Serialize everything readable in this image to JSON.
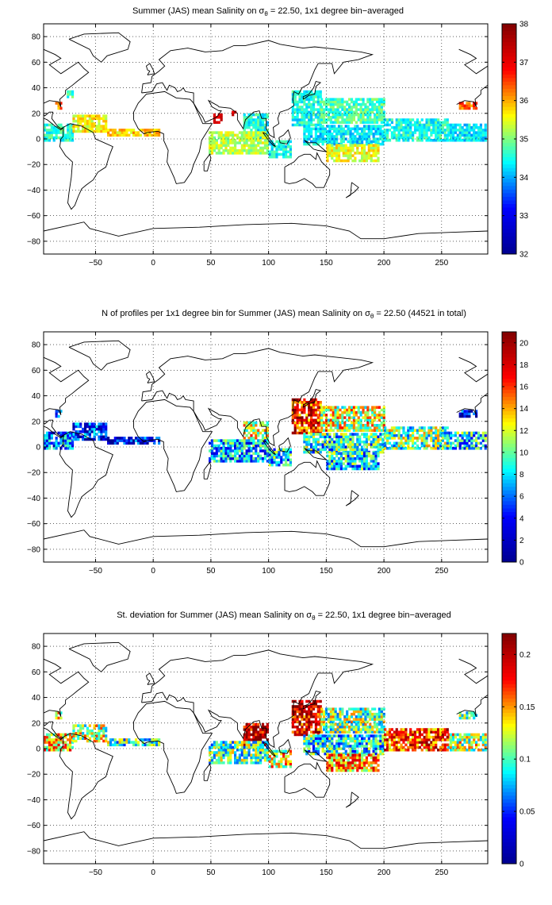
{
  "figure": {
    "background": "#ffffff",
    "colormap": "jet",
    "colormap_stops": [
      "#00008f",
      "#0000ff",
      "#00ffff",
      "#ffff00",
      "#ff0000",
      "#800000"
    ],
    "land_outline_color": "#000000"
  },
  "chart_data": [
    {
      "type": "heatmap",
      "panel": "salinity",
      "title_prefix": "Summer (JAS) mean Salinity on ",
      "title_symbol": "σ",
      "title_subscript": "θ",
      "title_suffix": " = 22.50, 1x1 degree bin−averaged",
      "xlim": [
        -95,
        290
      ],
      "ylim": [
        -90,
        90
      ],
      "xticks": [
        -50,
        0,
        50,
        100,
        150,
        200,
        250
      ],
      "yticks": [
        80,
        60,
        40,
        20,
        0,
        -20,
        -40,
        -60,
        -80
      ],
      "colorbar_range": [
        32,
        38
      ],
      "colorbar_ticks": [
        32,
        33,
        34,
        35,
        36,
        37,
        38
      ],
      "grid": true,
      "regions": [
        {
          "lon": [
            -95,
            -70
          ],
          "lat": [
            -2,
            12
          ],
          "value": 34.6
        },
        {
          "lon": [
            -70,
            -40
          ],
          "lat": [
            5,
            18
          ],
          "value": 35.6
        },
        {
          "lon": [
            -40,
            5
          ],
          "lat": [
            2,
            8
          ],
          "value": 35.8
        },
        {
          "lon": [
            -85,
            -80
          ],
          "lat": [
            23,
            28
          ],
          "value": 36.2
        },
        {
          "lon": [
            -75,
            -70
          ],
          "lat": [
            32,
            38
          ],
          "value": 34.7
        },
        {
          "lon": [
            265,
            280
          ],
          "lat": [
            23,
            28
          ],
          "value": 36.3
        },
        {
          "lon": [
            255,
            288
          ],
          "lat": [
            -2,
            12
          ],
          "value": 34.3
        },
        {
          "lon": [
            52,
            60
          ],
          "lat": [
            12,
            20
          ],
          "value": 37.2
        },
        {
          "lon": [
            68,
            72
          ],
          "lat": [
            18,
            22
          ],
          "value": 37.0
        },
        {
          "lon": [
            78,
            100
          ],
          "lat": [
            0,
            20
          ],
          "value": 34.5
        },
        {
          "lon": [
            48,
            100
          ],
          "lat": [
            -12,
            5
          ],
          "value": 35.3
        },
        {
          "lon": [
            100,
            120
          ],
          "lat": [
            -15,
            -2
          ],
          "value": 34.4
        },
        {
          "lon": [
            120,
            145
          ],
          "lat": [
            10,
            38
          ],
          "value": 34.5
        },
        {
          "lon": [
            145,
            200
          ],
          "lat": [
            12,
            32
          ],
          "value": 34.7
        },
        {
          "lon": [
            130,
            200
          ],
          "lat": [
            -5,
            10
          ],
          "value": 34.3
        },
        {
          "lon": [
            150,
            195
          ],
          "lat": [
            -18,
            -5
          ],
          "value": 35.5
        },
        {
          "lon": [
            200,
            255
          ],
          "lat": [
            -2,
            15
          ],
          "value": 34.5
        }
      ]
    },
    {
      "type": "heatmap",
      "panel": "count",
      "title_prefix": "N of profiles per 1x1 degree bin for Summer (JAS) mean Salinity on ",
      "title_symbol": "σ",
      "title_subscript": "θ",
      "title_suffix": " = 22.50 (44521 in total)",
      "xlim": [
        -95,
        290
      ],
      "ylim": [
        -90,
        90
      ],
      "xticks": [
        -50,
        0,
        50,
        100,
        150,
        200,
        250
      ],
      "yticks": [
        80,
        60,
        40,
        20,
        0,
        -20,
        -40,
        -60,
        -80
      ],
      "colorbar_range": [
        0,
        21
      ],
      "colorbar_ticks": [
        0,
        2,
        4,
        6,
        8,
        10,
        12,
        14,
        16,
        18,
        20
      ],
      "grid": true,
      "regions": [
        {
          "lon": [
            -95,
            -70
          ],
          "lat": [
            -2,
            12
          ],
          "value": 6
        },
        {
          "lon": [
            -70,
            -40
          ],
          "lat": [
            5,
            18
          ],
          "value": 4
        },
        {
          "lon": [
            -40,
            5
          ],
          "lat": [
            2,
            8
          ],
          "value": 3
        },
        {
          "lon": [
            -85,
            -80
          ],
          "lat": [
            23,
            28
          ],
          "value": 4
        },
        {
          "lon": [
            265,
            280
          ],
          "lat": [
            23,
            28
          ],
          "value": 3
        },
        {
          "lon": [
            255,
            288
          ],
          "lat": [
            -2,
            12
          ],
          "value": 8
        },
        {
          "lon": [
            78,
            100
          ],
          "lat": [
            0,
            20
          ],
          "value": 12
        },
        {
          "lon": [
            48,
            100
          ],
          "lat": [
            -12,
            5
          ],
          "value": 7
        },
        {
          "lon": [
            100,
            120
          ],
          "lat": [
            -15,
            -2
          ],
          "value": 8
        },
        {
          "lon": [
            120,
            145
          ],
          "lat": [
            10,
            38
          ],
          "value": 17
        },
        {
          "lon": [
            145,
            200
          ],
          "lat": [
            12,
            32
          ],
          "value": 12
        },
        {
          "lon": [
            130,
            200
          ],
          "lat": [
            -5,
            10
          ],
          "value": 9
        },
        {
          "lon": [
            150,
            195
          ],
          "lat": [
            -18,
            -5
          ],
          "value": 8
        },
        {
          "lon": [
            200,
            255
          ],
          "lat": [
            -2,
            15
          ],
          "value": 10
        }
      ]
    },
    {
      "type": "heatmap",
      "panel": "stdev",
      "title_prefix": "St. deviation for Summer (JAS) mean Salinity on ",
      "title_symbol": "σ",
      "title_subscript": "θ",
      "title_suffix": " = 22.50, 1x1 degree bin−averaged",
      "xlim": [
        -95,
        290
      ],
      "ylim": [
        -90,
        90
      ],
      "xticks": [
        -50,
        0,
        50,
        100,
        150,
        200,
        250
      ],
      "yticks": [
        80,
        60,
        40,
        20,
        0,
        -20,
        -40,
        -60,
        -80
      ],
      "colorbar_range": [
        0,
        0.22
      ],
      "colorbar_ticks": [
        0,
        0.05,
        0.1,
        0.15,
        0.2
      ],
      "grid": true,
      "regions": [
        {
          "lon": [
            -95,
            -70
          ],
          "lat": [
            -2,
            12
          ],
          "value": 0.14
        },
        {
          "lon": [
            -70,
            -40
          ],
          "lat": [
            5,
            18
          ],
          "value": 0.12
        },
        {
          "lon": [
            -40,
            5
          ],
          "lat": [
            2,
            8
          ],
          "value": 0.1
        },
        {
          "lon": [
            -85,
            -80
          ],
          "lat": [
            23,
            28
          ],
          "value": 0.12
        },
        {
          "lon": [
            265,
            280
          ],
          "lat": [
            23,
            28
          ],
          "value": 0.1
        },
        {
          "lon": [
            255,
            288
          ],
          "lat": [
            -2,
            12
          ],
          "value": 0.12
        },
        {
          "lon": [
            78,
            100
          ],
          "lat": [
            0,
            20
          ],
          "value": 0.2
        },
        {
          "lon": [
            48,
            100
          ],
          "lat": [
            -12,
            5
          ],
          "value": 0.1
        },
        {
          "lon": [
            100,
            120
          ],
          "lat": [
            -15,
            -2
          ],
          "value": 0.13
        },
        {
          "lon": [
            120,
            145
          ],
          "lat": [
            10,
            38
          ],
          "value": 0.19
        },
        {
          "lon": [
            145,
            200
          ],
          "lat": [
            12,
            32
          ],
          "value": 0.11
        },
        {
          "lon": [
            130,
            200
          ],
          "lat": [
            -5,
            10
          ],
          "value": 0.09
        },
        {
          "lon": [
            150,
            195
          ],
          "lat": [
            -18,
            -5
          ],
          "value": 0.15
        },
        {
          "lon": [
            200,
            255
          ],
          "lat": [
            -2,
            15
          ],
          "value": 0.17
        }
      ]
    }
  ]
}
